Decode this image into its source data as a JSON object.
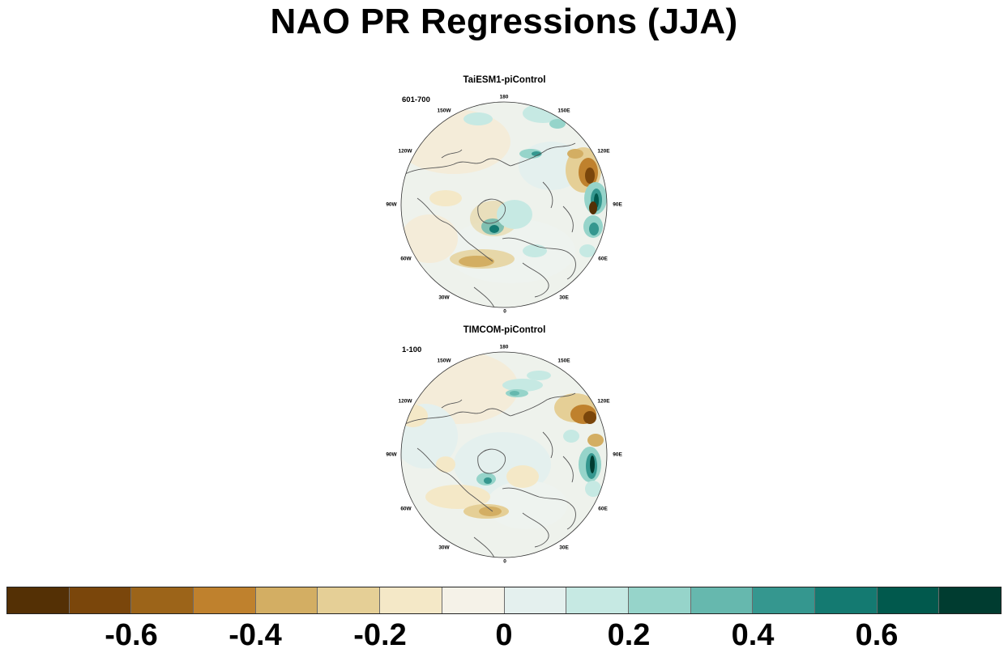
{
  "title": "NAO PR Regressions (JJA)",
  "colors": {
    "ocean_neutral": "#eef3ef",
    "coastline": "#555555",
    "colorbar": [
      "#543005",
      "#7a460b",
      "#9c6419",
      "#bf812d",
      "#d3ae63",
      "#e5cf96",
      "#f4e8c7",
      "#f5f2e8",
      "#e4f0ee",
      "#c6e9e3",
      "#96d4ca",
      "#66b8ae",
      "#35978f",
      "#147a71",
      "#01594d",
      "#003c30"
    ]
  },
  "panels": [
    {
      "title": "TaiESM1-piControl",
      "period": "601-700"
    },
    {
      "title": "TIMCOM-piControl",
      "period": "1-100"
    }
  ],
  "longitude_labels": {
    "top": "180",
    "upper_left": "150W",
    "upper_right": "150E",
    "left_upper": "120W",
    "right_upper": "120E",
    "left": "90W",
    "right": "90E",
    "left_lower": "60W",
    "right_lower": "60E",
    "lower_left": "30W",
    "lower_right": "30E",
    "bottom": "0"
  },
  "colorbar_labels": [
    "-0.6",
    "-0.4",
    "-0.2",
    "0",
    "0.2",
    "0.4",
    "0.6"
  ]
}
